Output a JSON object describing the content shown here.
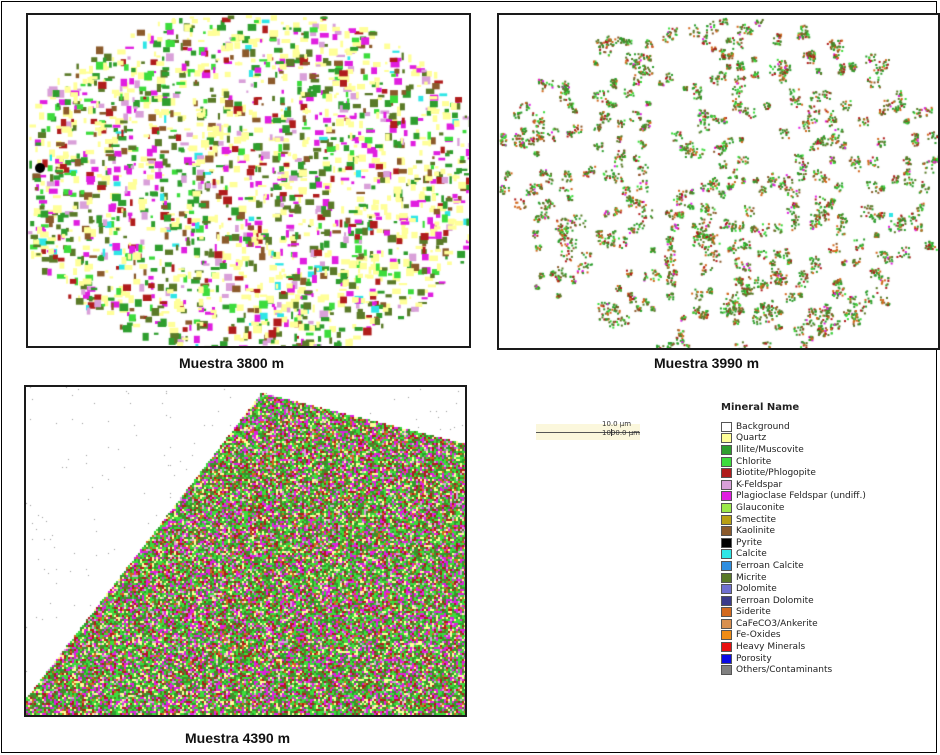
{
  "panels": [
    {
      "id": "a",
      "caption": "Muestra 3800 m"
    },
    {
      "id": "b",
      "caption": "Muestra 3990 m"
    },
    {
      "id": "c",
      "caption": "Muestra 4390 m"
    }
  ],
  "scale": {
    "label_1": "10.0 µm",
    "label_2": "1000.0 µm"
  },
  "legend": {
    "title": "Mineral Name",
    "items": [
      {
        "label": "Background",
        "color": "#ffffff"
      },
      {
        "label": "Quartz",
        "color": "#ffff99"
      },
      {
        "label": "Illite/Muscovite",
        "color": "#2e9e2e"
      },
      {
        "label": "Chlorite",
        "color": "#3cdc3c"
      },
      {
        "label": "Biotite/Phlogopite",
        "color": "#b01c1c"
      },
      {
        "label": "K-Feldspar",
        "color": "#d9a0d9"
      },
      {
        "label": "Plagioclase Feldspar (undiff.)",
        "color": "#e01ee0"
      },
      {
        "label": "Glauconite",
        "color": "#9be84a"
      },
      {
        "label": "Smectite",
        "color": "#b8a014"
      },
      {
        "label": "Kaolinite",
        "color": "#8b5a2b"
      },
      {
        "label": "Pyrite",
        "color": "#000000"
      },
      {
        "label": "Calcite",
        "color": "#2ee6e6"
      },
      {
        "label": "Ferroan Calcite",
        "color": "#2e8ee0"
      },
      {
        "label": "Micrite",
        "color": "#5a7a28"
      },
      {
        "label": "Dolomite",
        "color": "#7070d0"
      },
      {
        "label": "Ferroan Dolomite",
        "color": "#3a3a8a"
      },
      {
        "label": "Siderite",
        "color": "#d2691e"
      },
      {
        "label": "CaFeCO3/Ankerite",
        "color": "#d89050"
      },
      {
        "label": "Fe-Oxides",
        "color": "#f08c14"
      },
      {
        "label": "Heavy Minerals",
        "color": "#e81010"
      },
      {
        "label": "Porosity",
        "color": "#0a0ae6"
      },
      {
        "label": "Others/Contaminants",
        "color": "#808080"
      }
    ]
  }
}
